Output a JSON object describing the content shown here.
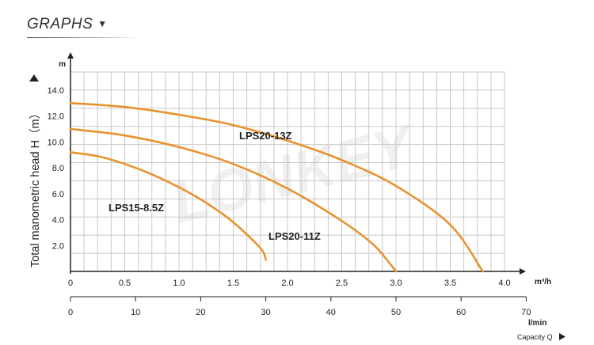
{
  "header": {
    "title": "GRAPHS",
    "arrow_icon": "triangle-down-icon"
  },
  "chart_data": {
    "type": "line",
    "y_axis": {
      "label": "Total manometric head H（m）",
      "unit": "m",
      "ticks": [
        2.0,
        4.0,
        6.0,
        8.0,
        10.0,
        12.0,
        14.0
      ],
      "tick_labels": [
        "2.0",
        "4.0",
        "6.0",
        "8.0",
        "10.0",
        "12.0",
        "14.0"
      ],
      "range": [
        0,
        15.4
      ]
    },
    "x_axis_m3h": {
      "unit": "m³/h",
      "ticks": [
        0,
        0.5,
        1.0,
        1.5,
        2.0,
        2.5,
        3.0,
        3.5,
        4.0
      ],
      "tick_labels": [
        "0",
        "0.5",
        "1.0",
        "1.5",
        "2.0",
        "2.5",
        "3.0",
        "3.5",
        "4.0"
      ],
      "range": [
        0,
        4.0
      ]
    },
    "x_axis_lmin": {
      "unit": "l/min",
      "ticks": [
        0,
        10,
        20,
        30,
        40,
        50,
        60,
        70
      ],
      "tick_labels": [
        "0",
        "10",
        "20",
        "30",
        "40",
        "50",
        "60",
        "70"
      ],
      "range": [
        0,
        70
      ]
    },
    "capacity_label": "Capacity Q",
    "grid": true,
    "watermark": "LONKEY",
    "curve_color": "#e8922e",
    "series": [
      {
        "name": "LPS20-13Z",
        "x": [
          0,
          0.5,
          1.0,
          1.5,
          2.0,
          2.5,
          3.0,
          3.5,
          3.8
        ],
        "y": [
          13.0,
          12.7,
          12.1,
          11.3,
          10.1,
          8.6,
          6.6,
          3.6,
          0.0
        ]
      },
      {
        "name": "LPS20-11Z",
        "x": [
          0,
          0.5,
          1.0,
          1.5,
          2.0,
          2.5,
          2.8,
          3.0
        ],
        "y": [
          11.0,
          10.5,
          9.6,
          8.3,
          6.4,
          3.9,
          2.0,
          0.0
        ]
      },
      {
        "name": "LPS15-8.5Z",
        "x": [
          0,
          0.25,
          0.5,
          0.75,
          1.0,
          1.25,
          1.5,
          1.75,
          1.8
        ],
        "y": [
          9.2,
          8.9,
          8.3,
          7.5,
          6.5,
          5.3,
          3.8,
          1.8,
          0.9
        ]
      }
    ]
  }
}
